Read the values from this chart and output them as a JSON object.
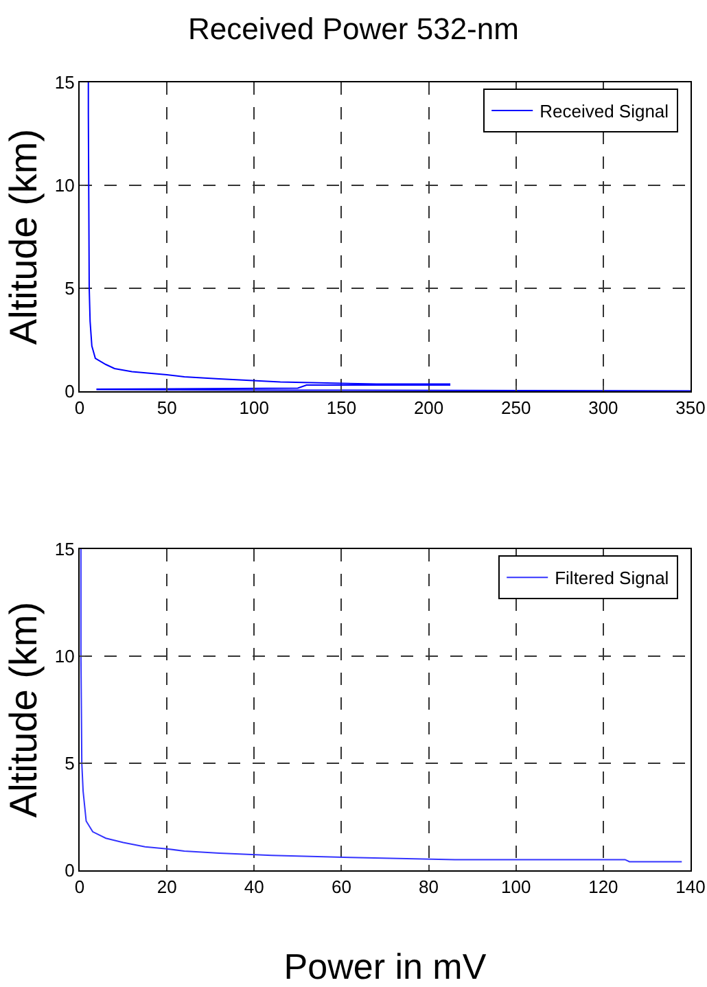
{
  "chart_data": [
    {
      "type": "line",
      "title": "Received Power 532-nm",
      "ylabel": "Altitude (km)",
      "xlim": [
        0,
        350
      ],
      "xticks": [
        0,
        50,
        100,
        150,
        200,
        250,
        300,
        350
      ],
      "ylim": [
        0,
        15
      ],
      "yticks": [
        0,
        5,
        10,
        15
      ],
      "grid": true,
      "legend": "top right",
      "series": [
        {
          "name": "Received Signal",
          "color": "#0000ff",
          "x": [
            5,
            5,
            5.5,
            6,
            7,
            9,
            15,
            20,
            30,
            50,
            60,
            80,
            115,
            170,
            212,
            212,
            130,
            125,
            10,
            10,
            125,
            350
          ],
          "values": [
            15,
            13.5,
            5,
            3.4,
            2.2,
            1.6,
            1.3,
            1.1,
            0.95,
            0.8,
            0.7,
            0.6,
            0.45,
            0.35,
            0.35,
            0.3,
            0.3,
            0.15,
            0.1,
            0.08,
            0.05,
            0.02
          ]
        }
      ]
    },
    {
      "type": "line",
      "xlabel": "Power in mV",
      "ylabel": "Altitude (km)",
      "xlim": [
        0,
        140
      ],
      "xticks": [
        0,
        20,
        40,
        60,
        80,
        100,
        120,
        140
      ],
      "ylim": [
        0,
        15
      ],
      "yticks": [
        0,
        5,
        10,
        15
      ],
      "grid": true,
      "legend": "top right",
      "series": [
        {
          "name": "Filtered Signal",
          "color": "#3333ff",
          "x": [
            0.3,
            0.3,
            0.5,
            0.8,
            1.5,
            3,
            6,
            10,
            15,
            20,
            24,
            32,
            44,
            62,
            86,
            125,
            126,
            138
          ],
          "values": [
            15,
            10,
            5,
            3.7,
            2.3,
            1.8,
            1.5,
            1.3,
            1.1,
            1.0,
            0.9,
            0.8,
            0.7,
            0.6,
            0.5,
            0.5,
            0.4,
            0.4
          ]
        }
      ]
    }
  ]
}
